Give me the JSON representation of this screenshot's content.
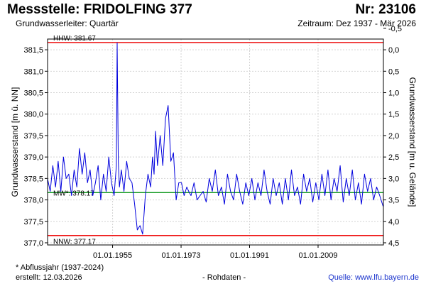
{
  "header": {
    "title": "Messstelle: FRIDOLFING 377",
    "number": "Nr: 23106",
    "aquifer": "Grundwasserleiter: Quartär",
    "period": "Zeitraum: Dez 1937 - Mär 2026"
  },
  "footer": {
    "footnote": "* Abflussjahr (1937-2024)",
    "created": "erstellt:  12.03.2026",
    "raw": "- Rohdaten -",
    "source": "Quelle:  www.lfu.bayern.de"
  },
  "chart_data": {
    "type": "line",
    "ylabel": "Grundwasserstand [m ü. NN]",
    "y2label": "Grundwasserstand [m u. Gelände]",
    "xlim": [
      "1937-12",
      "2026-03"
    ],
    "ylim": [
      376.95,
      381.75
    ],
    "y2lim": [
      4.55,
      -0.25
    ],
    "x_ticks": [
      {
        "value": 1955,
        "label": "01.01.1955"
      },
      {
        "value": 1973,
        "label": "01.01.1973"
      },
      {
        "value": 1991,
        "label": "01.01.1991"
      },
      {
        "value": 2009,
        "label": "01.01.2009"
      }
    ],
    "y_ticks": [
      {
        "value": 377.0,
        "label": "377,0"
      },
      {
        "value": 377.5,
        "label": "377,5"
      },
      {
        "value": 378.0,
        "label": "378,0"
      },
      {
        "value": 378.5,
        "label": "378,5"
      },
      {
        "value": 379.0,
        "label": "379,0"
      },
      {
        "value": 379.5,
        "label": "379,5"
      },
      {
        "value": 380.0,
        "label": "380,0"
      },
      {
        "value": 380.5,
        "label": "380,5"
      },
      {
        "value": 381.0,
        "label": "381,0"
      },
      {
        "value": 381.5,
        "label": "381,5"
      }
    ],
    "y2_ticks": [
      {
        "value": -0.5,
        "label": "-0,5"
      },
      {
        "value": 0.0,
        "label": "0,0"
      },
      {
        "value": 0.5,
        "label": "0,5"
      },
      {
        "value": 1.0,
        "label": "1,0"
      },
      {
        "value": 1.5,
        "label": "1,5"
      },
      {
        "value": 2.0,
        "label": "2,0"
      },
      {
        "value": 2.5,
        "label": "2,5"
      },
      {
        "value": 3.0,
        "label": "3,0"
      },
      {
        "value": 3.5,
        "label": "3,5"
      },
      {
        "value": 4.0,
        "label": "4,0"
      },
      {
        "value": 4.5,
        "label": "4,5"
      }
    ],
    "grid": true,
    "reference_lines": [
      {
        "label": "HHW: 381.67",
        "value": 381.67,
        "color": "#ee1111"
      },
      {
        "label": "MW*: 378.17",
        "value": 378.17,
        "color": "#11991f"
      },
      {
        "label": "NNW: 377.17",
        "value": 377.17,
        "color": "#ee1111"
      }
    ],
    "series": [
      {
        "color": "#0000dd",
        "x": [
          1937.9,
          1938.6,
          1939.3,
          1940.0,
          1940.7,
          1941.4,
          1942.1,
          1942.8,
          1943.5,
          1944.2,
          1944.9,
          1945.6,
          1946.3,
          1947.0,
          1947.7,
          1948.4,
          1949.1,
          1949.8,
          1950.5,
          1951.2,
          1951.9,
          1952.6,
          1953.3,
          1954.0,
          1954.7,
          1955.4,
          1956.0,
          1956.2,
          1956.5,
          1956.8,
          1957.3,
          1958.0,
          1958.7,
          1959.4,
          1960.1,
          1960.8,
          1961.5,
          1962.2,
          1962.9,
          1963.6,
          1964.3,
          1965.0,
          1965.5,
          1965.9,
          1966.3,
          1966.8,
          1967.5,
          1968.2,
          1968.9,
          1969.6,
          1970.3,
          1971.0,
          1971.7,
          1972.4,
          1973.1,
          1973.8,
          1974.5,
          1975.0,
          1975.6,
          1976.4,
          1977.2,
          1978.0,
          1978.8,
          1979.6,
          1980.4,
          1981.2,
          1982.0,
          1982.8,
          1983.6,
          1984.4,
          1985.2,
          1986.0,
          1986.8,
          1987.6,
          1988.4,
          1989.2,
          1990.0,
          1990.8,
          1991.6,
          1992.4,
          1993.2,
          1994.0,
          1994.8,
          1995.6,
          1996.4,
          1997.2,
          1998.0,
          1998.8,
          1999.6,
          2000.4,
          2001.2,
          2002.0,
          2002.8,
          2003.6,
          2004.4,
          2005.2,
          2006.0,
          2006.8,
          2007.6,
          2008.4,
          2009.2,
          2010.0,
          2010.8,
          2011.6,
          2012.4,
          2013.2,
          2014.0,
          2014.8,
          2015.6,
          2016.4,
          2017.2,
          2018.0,
          2018.8,
          2019.6,
          2020.4,
          2021.2,
          2022.0,
          2022.8,
          2023.6,
          2024.4,
          2025.2,
          2026.1
        ],
        "y": [
          378.5,
          378.2,
          378.8,
          378.3,
          378.9,
          378.2,
          379.0,
          378.5,
          378.6,
          378.1,
          378.7,
          378.3,
          379.2,
          378.6,
          379.1,
          378.4,
          378.7,
          378.1,
          378.4,
          378.8,
          378.0,
          378.6,
          378.2,
          379.0,
          378.4,
          378.1,
          378.8,
          381.66,
          378.9,
          378.3,
          378.7,
          378.2,
          378.9,
          378.5,
          378.4,
          377.9,
          377.3,
          377.4,
          377.2,
          378.1,
          378.6,
          378.3,
          379.0,
          378.6,
          379.6,
          378.8,
          379.5,
          378.8,
          379.9,
          380.2,
          378.9,
          379.1,
          378.0,
          378.4,
          378.4,
          378.1,
          378.3,
          378.2,
          378.1,
          378.4,
          378.0,
          378.1,
          378.2,
          377.95,
          378.5,
          378.2,
          378.7,
          378.1,
          378.3,
          377.9,
          378.6,
          378.2,
          378.0,
          378.6,
          378.2,
          377.9,
          378.4,
          378.1,
          378.5,
          378.0,
          378.4,
          378.1,
          378.7,
          378.2,
          377.9,
          378.5,
          378.1,
          378.4,
          377.9,
          378.5,
          378.0,
          378.7,
          378.1,
          378.3,
          377.9,
          378.6,
          378.2,
          378.5,
          377.95,
          378.4,
          378.0,
          378.6,
          378.1,
          378.7,
          378.0,
          378.5,
          378.2,
          378.8,
          377.95,
          378.5,
          378.1,
          378.7,
          378.0,
          378.4,
          377.9,
          378.6,
          378.2,
          378.5,
          378.0,
          378.3,
          378.1,
          377.85
        ]
      }
    ]
  }
}
